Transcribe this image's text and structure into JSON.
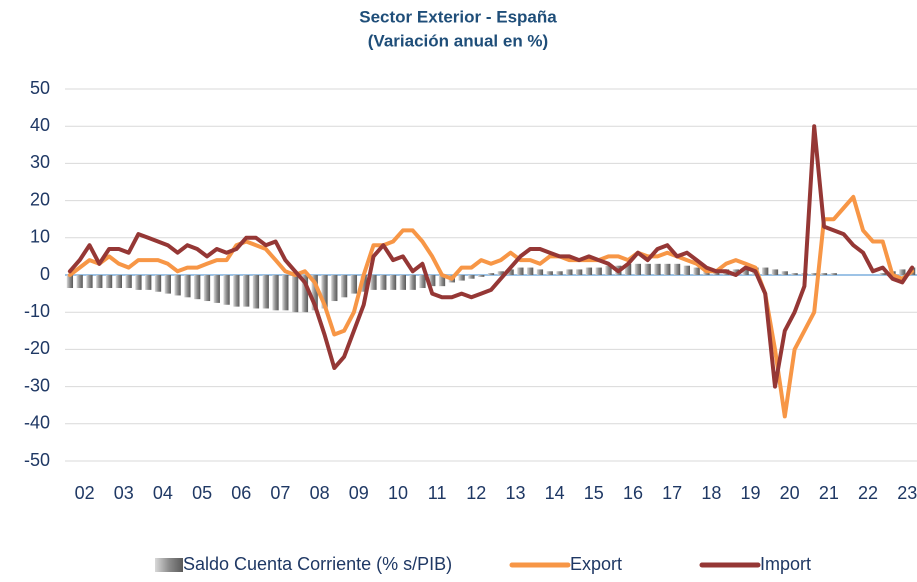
{
  "chart_data": {
    "type": "bar_line",
    "title": "Sector Exterior - España",
    "subtitle": "(Variación anual en %)",
    "categories": [
      null,
      "02",
      null,
      null,
      null,
      "03",
      null,
      null,
      null,
      "04",
      null,
      null,
      null,
      "05",
      null,
      null,
      null,
      "06",
      null,
      null,
      null,
      "07",
      null,
      null,
      null,
      "08",
      null,
      null,
      null,
      "09",
      null,
      null,
      null,
      "10",
      null,
      null,
      null,
      "11",
      null,
      null,
      null,
      "12",
      null,
      null,
      null,
      "13",
      null,
      null,
      null,
      "14",
      null,
      null,
      null,
      "15",
      null,
      null,
      null,
      "16",
      null,
      null,
      null,
      "17",
      null,
      null,
      null,
      "18",
      null,
      null,
      null,
      "19",
      null,
      null,
      null,
      "20",
      null,
      null,
      null,
      "21",
      null,
      null,
      null,
      "22",
      null,
      null,
      null,
      "23",
      null
    ],
    "series": [
      {
        "name": "Saldo Cuenta Corriente (% s/PIB)",
        "type": "bar",
        "color": "#8c8c8c",
        "values": [
          -3.5,
          -3.5,
          -3.5,
          -3.5,
          -3.5,
          -3.5,
          -3.5,
          -4,
          -4,
          -4.5,
          -5,
          -5.5,
          -6,
          -6.5,
          -7,
          -7.5,
          -8,
          -8.5,
          -8.5,
          -9,
          -9,
          -9.5,
          -9.5,
          -10,
          -10,
          -9.5,
          -9,
          -7,
          -6,
          -5,
          -4.5,
          -4,
          -4,
          -4,
          -4,
          -4,
          -3.5,
          -3,
          -3,
          -2,
          -1.5,
          -1,
          -0.5,
          0.5,
          1,
          1.5,
          2,
          2,
          1.5,
          1,
          1,
          1.5,
          1.5,
          2,
          2,
          2.5,
          2.5,
          3,
          3,
          3,
          3,
          3,
          3,
          2.5,
          2,
          1.5,
          1.5,
          1.5,
          1.5,
          2,
          2,
          2,
          1.5,
          1,
          0.5,
          0.5,
          0.5,
          0.5,
          0.5,
          0,
          0,
          0,
          0,
          0.5,
          1,
          1.5,
          2
        ]
      },
      {
        "name": "Export",
        "type": "line",
        "color": "#f79646",
        "values": [
          0,
          2,
          4,
          3,
          5,
          3,
          2,
          4,
          4,
          4,
          3,
          1,
          2,
          2,
          3,
          4,
          4,
          8,
          9,
          8,
          7,
          4,
          1,
          0,
          1,
          -2,
          -8,
          -16,
          -15,
          -10,
          0,
          8,
          8,
          9,
          12,
          12,
          9,
          5,
          0,
          -1,
          2,
          2,
          4,
          3,
          4,
          6,
          4,
          4,
          3,
          5,
          5,
          4,
          4,
          4,
          4,
          5,
          5,
          4,
          6,
          5,
          5,
          6,
          5,
          4,
          3,
          1,
          1,
          3,
          4,
          3,
          2,
          -5,
          -20,
          -38,
          -20,
          -15,
          -10,
          15,
          15,
          18,
          21,
          12,
          9,
          9,
          0,
          -1,
          1
        ]
      },
      {
        "name": "Import",
        "type": "line",
        "color": "#953735",
        "values": [
          1,
          4,
          8,
          3,
          7,
          7,
          6,
          11,
          10,
          9,
          8,
          6,
          8,
          7,
          5,
          7,
          6,
          7,
          10,
          10,
          8,
          9,
          4,
          1,
          -2,
          -8,
          -16,
          -25,
          -22,
          -15,
          -8,
          5,
          8,
          4,
          5,
          1,
          3,
          -5,
          -6,
          -6,
          -5,
          -6,
          -5,
          -4,
          -1,
          2,
          5,
          7,
          7,
          6,
          5,
          5,
          4,
          5,
          4,
          3,
          1,
          3,
          6,
          4,
          7,
          8,
          5,
          6,
          4,
          2,
          1,
          1,
          0,
          2,
          1,
          -5,
          -30,
          -15,
          -10,
          -3,
          40,
          13,
          12,
          11,
          8,
          6,
          1,
          2,
          -1,
          -2,
          2
        ]
      }
    ],
    "ylim": [
      -50,
      50
    ],
    "yticks": [
      -50,
      -40,
      -30,
      -20,
      -10,
      0,
      10,
      20,
      30,
      40,
      50
    ],
    "grid": true
  }
}
